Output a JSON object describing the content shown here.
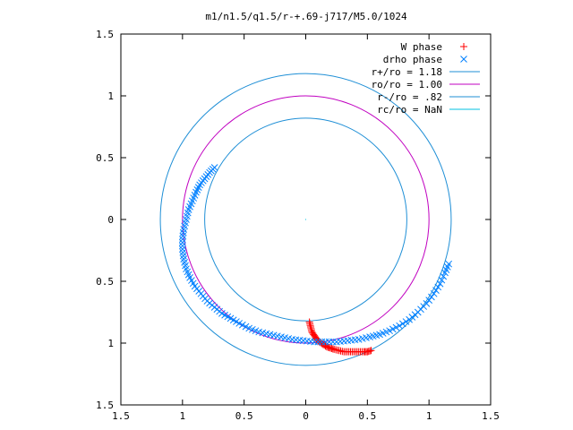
{
  "chart_data": {
    "type": "scatter",
    "title": "m1/n1.5/q1.5/r-+.69-j717/M5.0/1024",
    "xlabel": "",
    "ylabel": "",
    "xlim": [
      -1.5,
      1.5
    ],
    "ylim": [
      -1.5,
      1.5
    ],
    "x_ticks": [
      "1.5",
      "1",
      "0.5",
      "0",
      "0.5",
      "1",
      "1.5"
    ],
    "y_ticks": [
      "1.5",
      "1",
      "0.5",
      "0",
      "0.5",
      "1",
      "1.5"
    ],
    "grid": false,
    "legend_position": "top-right",
    "legend": [
      {
        "label": "W phase",
        "marker": "plus",
        "color": "#ff0000"
      },
      {
        "label": "drho phase",
        "marker": "cross",
        "color": "#0080ff"
      },
      {
        "label": "r+/ro = 1.18",
        "marker": "line",
        "color": "#1f8fd6"
      },
      {
        "label": "ro/ro = 1.00",
        "marker": "line",
        "color": "#c000c0"
      },
      {
        "label": "r-/ro = .82",
        "marker": "line",
        "color": "#1f8fd6"
      },
      {
        "label": "rc/ro = NaN",
        "marker": "line",
        "color": "#00c0e0"
      }
    ],
    "circles": [
      {
        "name": "r+/ro = 1.18",
        "r": 1.18,
        "color": "#1f8fd6"
      },
      {
        "name": "ro/ro = 1.00",
        "r": 1.0,
        "color": "#c000c0"
      },
      {
        "name": "r-/ro = .82",
        "r": 0.82,
        "color": "#1f8fd6"
      }
    ],
    "series": [
      {
        "name": "W phase",
        "color": "#ff0000",
        "x": [
          0.03,
          0.04,
          0.05,
          0.07,
          0.09,
          0.11,
          0.14,
          0.17,
          0.2,
          0.23,
          0.27,
          0.31,
          0.35,
          0.39,
          0.43,
          0.47,
          0.5,
          0.53
        ],
        "y": [
          -0.83,
          -0.87,
          -0.91,
          -0.94,
          -0.97,
          -0.99,
          -1.01,
          -1.03,
          -1.04,
          -1.05,
          -1.06,
          -1.07,
          -1.07,
          -1.07,
          -1.07,
          -1.07,
          -1.07,
          -1.06
        ]
      },
      {
        "name": "drho phase",
        "color": "#0080ff",
        "x": [
          -0.74,
          -0.78,
          -0.82,
          -0.86,
          -0.89,
          -0.92,
          -0.95,
          -0.97,
          -0.99,
          -1.0,
          -1.0,
          -0.99,
          -0.97,
          -0.94,
          -0.9,
          -0.85,
          -0.8,
          -0.74,
          -0.68,
          -0.61,
          -0.54,
          -0.46,
          -0.38,
          -0.29,
          -0.2,
          -0.11,
          -0.02,
          0.07,
          0.16,
          0.25,
          0.34,
          0.43,
          0.52,
          0.6,
          0.68,
          0.76,
          0.84,
          0.91,
          0.98,
          1.04,
          1.09,
          1.13,
          1.16
        ],
        "y": [
          0.42,
          0.38,
          0.33,
          0.28,
          0.22,
          0.15,
          0.08,
          0.0,
          -0.08,
          -0.16,
          -0.24,
          -0.32,
          -0.4,
          -0.47,
          -0.54,
          -0.6,
          -0.66,
          -0.71,
          -0.76,
          -0.8,
          -0.84,
          -0.88,
          -0.91,
          -0.93,
          -0.95,
          -0.97,
          -0.98,
          -0.99,
          -0.99,
          -0.99,
          -0.98,
          -0.97,
          -0.95,
          -0.93,
          -0.9,
          -0.86,
          -0.81,
          -0.75,
          -0.68,
          -0.6,
          -0.52,
          -0.43,
          -0.36
        ]
      }
    ],
    "center_point": {
      "x": 0,
      "y": 0
    }
  }
}
